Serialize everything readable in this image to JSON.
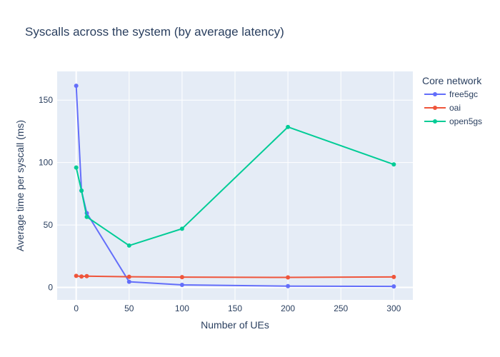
{
  "chart_data": {
    "type": "line",
    "title": "Syscalls across the system (by average latency)",
    "xlabel": "Number of UEs",
    "ylabel": "Average time per syscall (ms)",
    "xlim": [
      -18,
      318
    ],
    "ylim": [
      -10,
      173
    ],
    "x_ticks": [
      0,
      50,
      100,
      150,
      200,
      250,
      300
    ],
    "y_ticks": [
      0,
      50,
      100,
      150
    ],
    "grid": true,
    "legend_title": "Core network",
    "legend_position": "right",
    "plot_bg": "#e5ecf6",
    "series": [
      {
        "name": "free5gc",
        "color": "#636efa",
        "x": [
          0,
          5,
          10,
          50,
          100,
          200,
          300
        ],
        "y": [
          161.5,
          77.5,
          59.5,
          4.5,
          2.0,
          1.0,
          0.8
        ]
      },
      {
        "name": "oai",
        "color": "#ef553b",
        "x": [
          0,
          5,
          10,
          50,
          100,
          200,
          300
        ],
        "y": [
          9.2,
          8.7,
          9.0,
          8.5,
          8.2,
          8.0,
          8.4
        ]
      },
      {
        "name": "open5gs",
        "color": "#00cc96",
        "x": [
          0,
          5,
          10,
          50,
          100,
          200,
          300
        ],
        "y": [
          96,
          77.5,
          56.5,
          33.5,
          47,
          128.5,
          98.5
        ]
      }
    ]
  }
}
